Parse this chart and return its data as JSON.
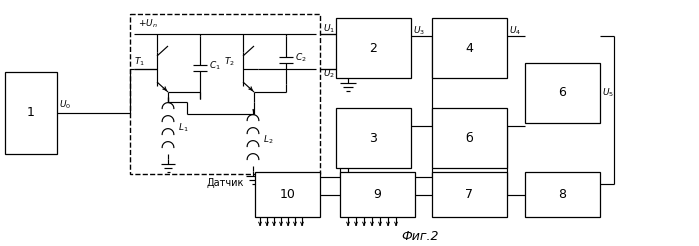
{
  "fig_width": 6.99,
  "fig_height": 2.46,
  "dpi": 100,
  "caption": "Фиг.2",
  "sensor_label": "Датчик",
  "b5_label": "б"
}
